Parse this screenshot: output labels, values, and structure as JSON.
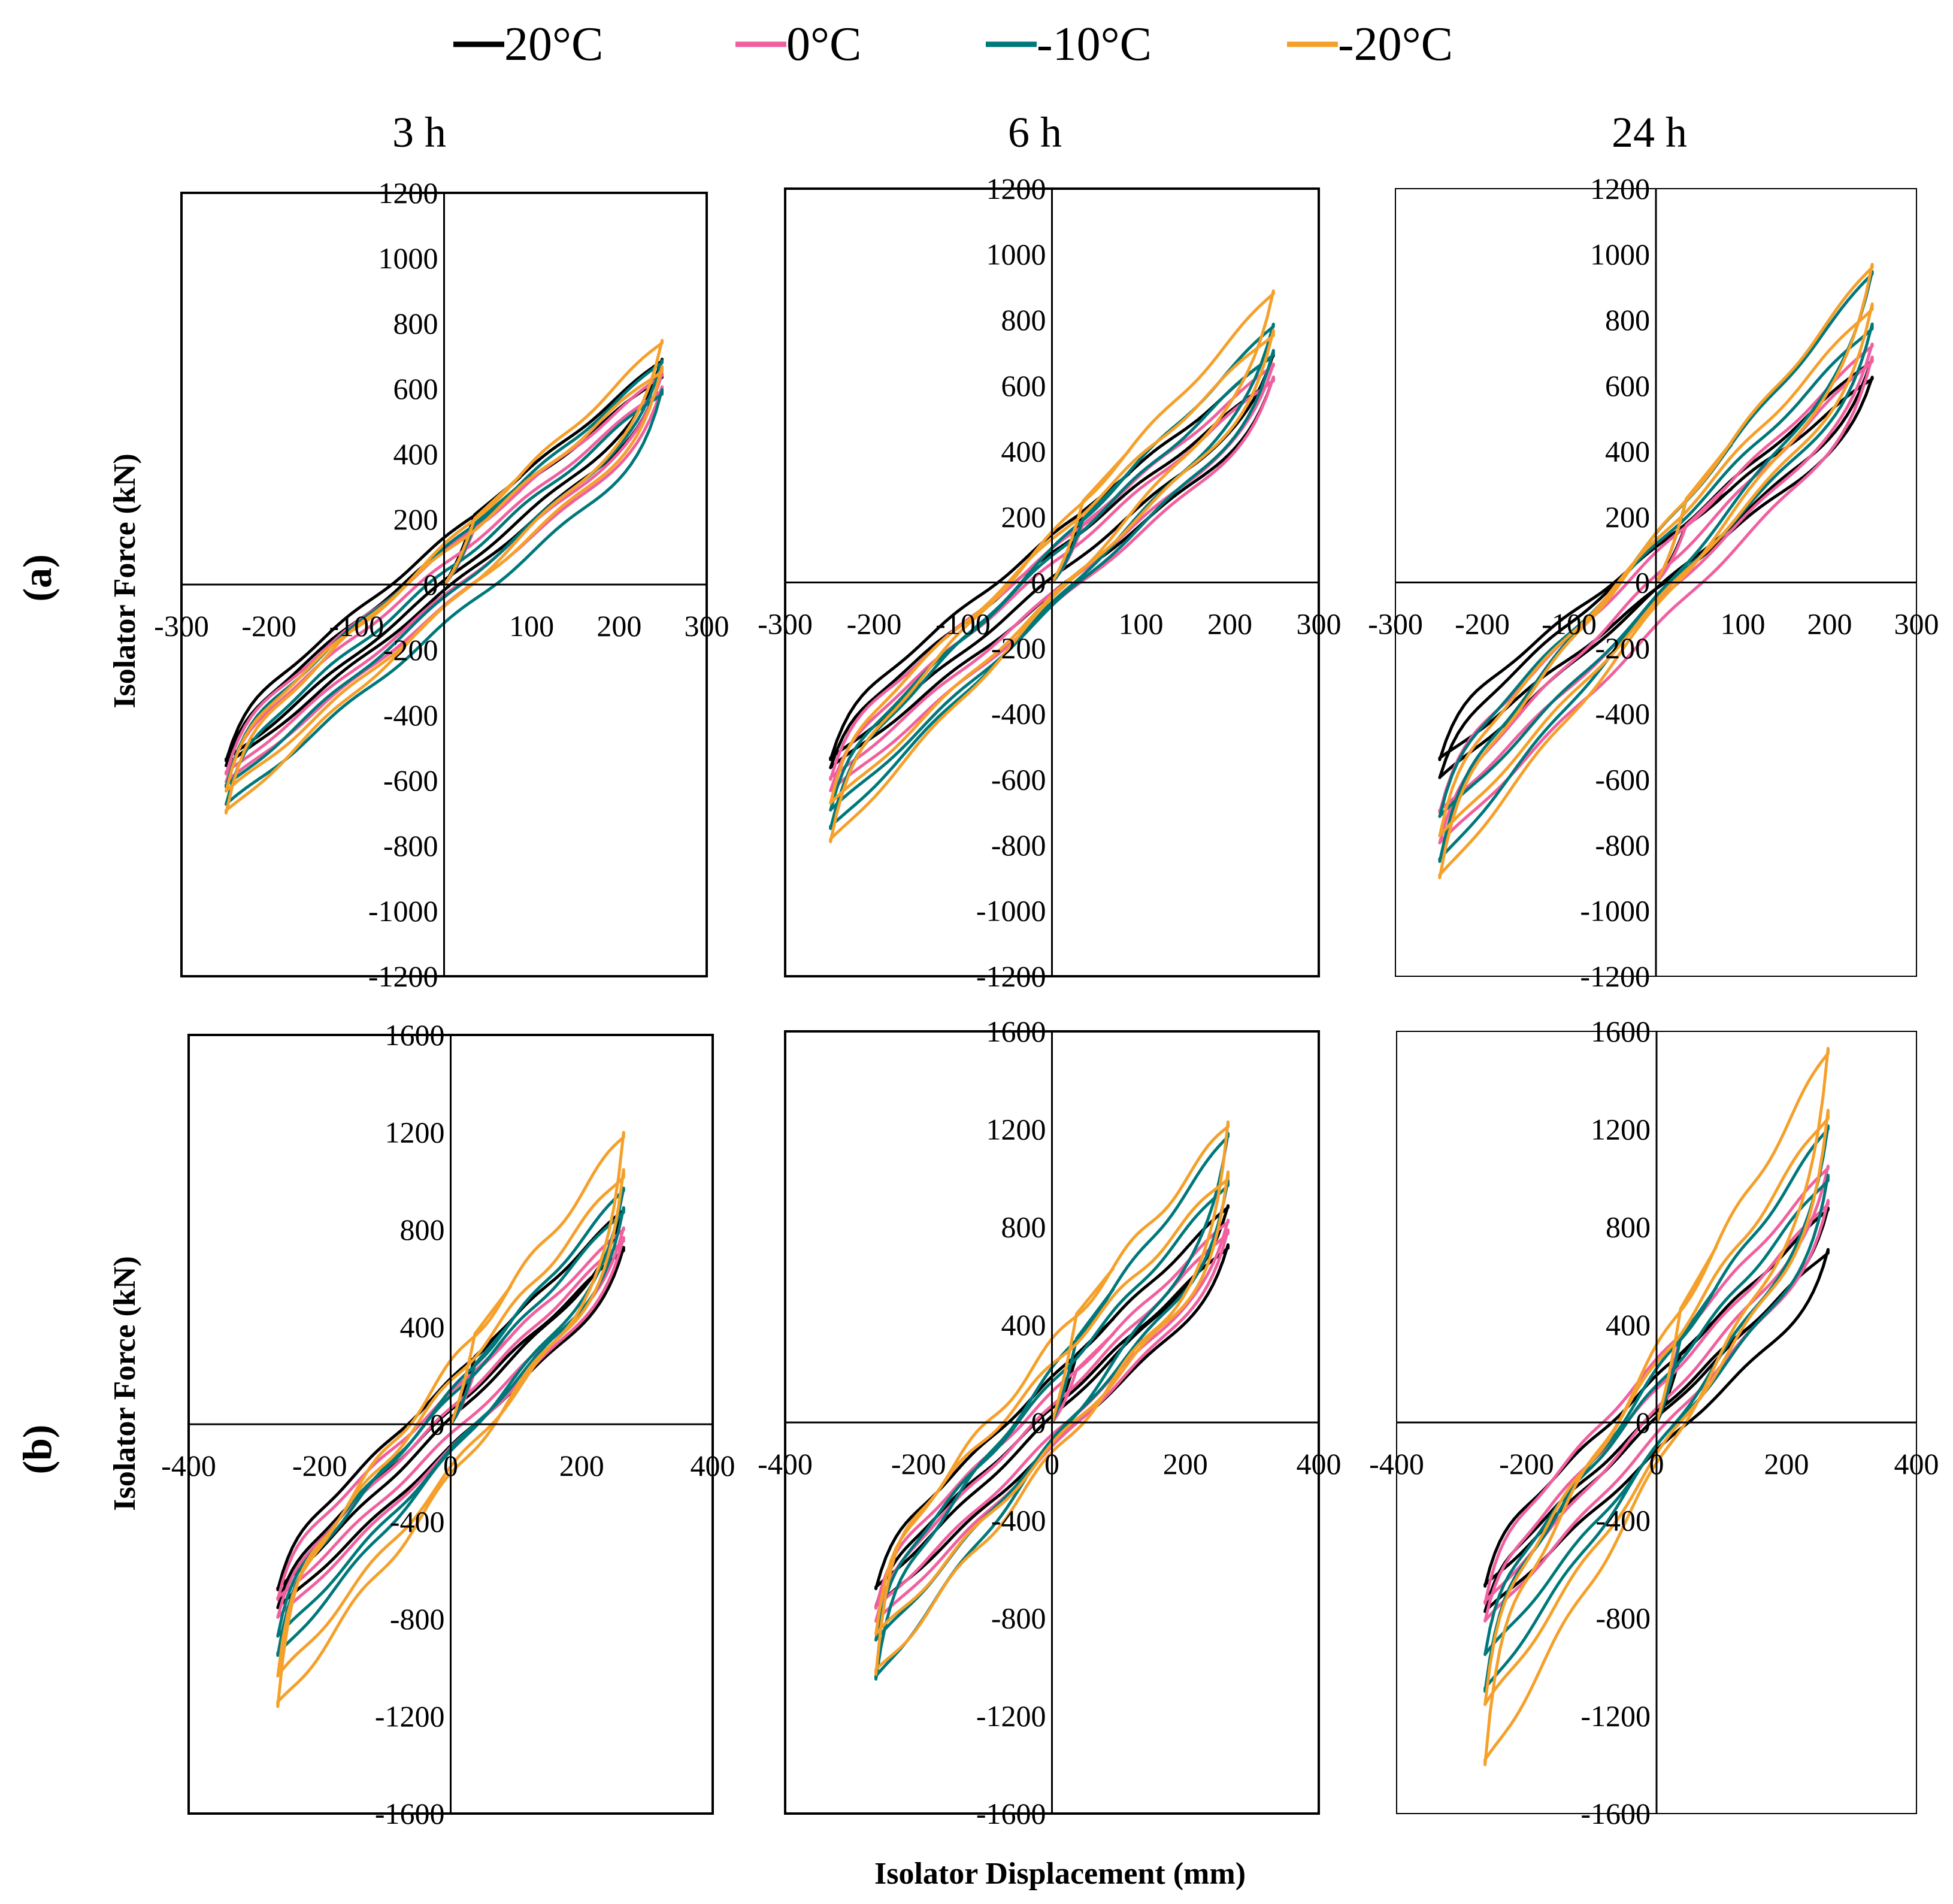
{
  "figure": {
    "x_axis_title": "Isolator Displacement (mm)",
    "y_axis_title": "Isolator Force (kN)",
    "row_labels": [
      "(a)",
      "(b)"
    ],
    "column_titles": [
      "3 h",
      "6 h",
      "24 h"
    ]
  },
  "legend": [
    {
      "label": "20°C",
      "color": "#000000"
    },
    {
      "label": "0°C",
      "color": "#f0609f"
    },
    {
      "label": "-10°C",
      "color": "#00787a"
    },
    {
      "label": "-20°C",
      "color": "#f5a02b"
    }
  ],
  "chart_data": [
    {
      "type": "line",
      "panel": "a-3h",
      "row": "(a)",
      "title": "3 h",
      "xlabel": "Isolator Displacement (mm)",
      "ylabel": "Isolator Force (kN)",
      "xlim": [
        -300,
        300
      ],
      "ylim": [
        -1200,
        1200
      ],
      "xticks": [
        -300,
        -200,
        -100,
        0,
        100,
        200,
        300
      ],
      "yticks": [
        -1200,
        -1000,
        -800,
        -600,
        -400,
        -200,
        0,
        200,
        400,
        600,
        800,
        1000,
        1200
      ],
      "series": [
        {
          "name": "20°C",
          "color": "#000000",
          "loops": [
            {
              "pmax": 685,
              "nmin": -540,
              "q": 130
            },
            {
              "pmax": 640,
              "nmin": -560,
              "q": 125
            }
          ]
        },
        {
          "name": "0°C",
          "color": "#f0609f",
          "loops": [
            {
              "pmax": 640,
              "nmin": -580,
              "q": 135
            },
            {
              "pmax": 600,
              "nmin": -610,
              "q": 130
            }
          ]
        },
        {
          "name": "-10°C",
          "color": "#00787a",
          "loops": [
            {
              "pmax": 680,
              "nmin": -620,
              "q": 150
            },
            {
              "pmax": 590,
              "nmin": -680,
              "q": 160
            }
          ]
        },
        {
          "name": "-20°C",
          "color": "#f5a02b",
          "loops": [
            {
              "pmax": 740,
              "nmin": -700,
              "q": 190
            },
            {
              "pmax": 660,
              "nmin": -640,
              "q": 170
            }
          ]
        }
      ]
    },
    {
      "type": "line",
      "panel": "a-6h",
      "row": "(a)",
      "title": "6 h",
      "xlabel": "Isolator Displacement (mm)",
      "ylabel": "Isolator Force (kN)",
      "xlim": [
        -300,
        300
      ],
      "ylim": [
        -1200,
        1200
      ],
      "xticks": [
        -300,
        -200,
        -100,
        0,
        100,
        200,
        300
      ],
      "yticks": [
        -1200,
        -1000,
        -800,
        -600,
        -400,
        -200,
        0,
        200,
        400,
        600,
        800,
        1000,
        1200
      ],
      "series": [
        {
          "name": "20°C",
          "color": "#000000",
          "loops": [
            {
              "pmax": 690,
              "nmin": -540,
              "q": 130
            },
            {
              "pmax": 620,
              "nmin": -570,
              "q": 125
            }
          ]
        },
        {
          "name": "0°C",
          "color": "#f0609f",
          "loops": [
            {
              "pmax": 660,
              "nmin": -600,
              "q": 135
            },
            {
              "pmax": 620,
              "nmin": -640,
              "q": 130
            }
          ]
        },
        {
          "name": "-10°C",
          "color": "#00787a",
          "loops": [
            {
              "pmax": 780,
              "nmin": -750,
              "q": 165
            },
            {
              "pmax": 700,
              "nmin": -700,
              "q": 155
            }
          ]
        },
        {
          "name": "-20°C",
          "color": "#f5a02b",
          "loops": [
            {
              "pmax": 880,
              "nmin": -790,
              "q": 200
            },
            {
              "pmax": 760,
              "nmin": -680,
              "q": 175
            }
          ]
        }
      ]
    },
    {
      "type": "line",
      "panel": "a-24h",
      "row": "(a)",
      "title": "24 h",
      "xlabel": "Isolator Displacement (mm)",
      "ylabel": "Isolator Force (kN)",
      "xlim": [
        -300,
        300
      ],
      "ylim": [
        -1200,
        1200
      ],
      "xticks": [
        -300,
        -200,
        -100,
        0,
        100,
        200,
        300
      ],
      "yticks": [
        -1200,
        -1000,
        -800,
        -600,
        -400,
        -200,
        0,
        200,
        400,
        600,
        800,
        1000,
        1200
      ],
      "series": [
        {
          "name": "20°C",
          "color": "#000000",
          "loops": [
            {
              "pmax": 620,
              "nmin": -540,
              "q": 130
            },
            {
              "pmax": 680,
              "nmin": -600,
              "q": 130
            }
          ]
        },
        {
          "name": "0°C",
          "color": "#f0609f",
          "loops": [
            {
              "pmax": 720,
              "nmin": -700,
              "q": 150
            },
            {
              "pmax": 680,
              "nmin": -800,
              "q": 155
            }
          ]
        },
        {
          "name": "-10°C",
          "color": "#00787a",
          "loops": [
            {
              "pmax": 940,
              "nmin": -850,
              "q": 190
            },
            {
              "pmax": 780,
              "nmin": -720,
              "q": 165
            }
          ]
        },
        {
          "name": "-20°C",
          "color": "#f5a02b",
          "loops": [
            {
              "pmax": 960,
              "nmin": -900,
              "q": 220
            },
            {
              "pmax": 840,
              "nmin": -780,
              "q": 190
            }
          ]
        }
      ]
    },
    {
      "type": "line",
      "panel": "b-3h",
      "row": "(b)",
      "title": "3 h",
      "xlabel": "Isolator Displacement (mm)",
      "ylabel": "Isolator Force (kN)",
      "xlim": [
        -400,
        400
      ],
      "ylim": [
        -1600,
        1600
      ],
      "xticks": [
        -400,
        -200,
        0,
        200,
        400
      ],
      "yticks": [
        -1600,
        -1200,
        -800,
        -400,
        0,
        400,
        800,
        1200,
        1600
      ],
      "series": [
        {
          "name": "20°C",
          "color": "#000000",
          "loops": [
            {
              "pmax": 880,
              "nmin": -680,
              "q": 160
            },
            {
              "pmax": 720,
              "nmin": -760,
              "q": 150
            }
          ]
        },
        {
          "name": "0°C",
          "color": "#f0609f",
          "loops": [
            {
              "pmax": 800,
              "nmin": -720,
              "q": 170
            },
            {
              "pmax": 760,
              "nmin": -800,
              "q": 165
            }
          ]
        },
        {
          "name": "-10°C",
          "color": "#00787a",
          "loops": [
            {
              "pmax": 960,
              "nmin": -950,
              "q": 250
            },
            {
              "pmax": 880,
              "nmin": -880,
              "q": 220
            }
          ]
        },
        {
          "name": "-20°C",
          "color": "#f5a02b",
          "loops": [
            {
              "pmax": 1180,
              "nmin": -1160,
              "q": 460
            },
            {
              "pmax": 1030,
              "nmin": -1050,
              "q": 360
            }
          ]
        }
      ]
    },
    {
      "type": "line",
      "panel": "b-6h",
      "row": "(b)",
      "title": "6 h",
      "xlabel": "Isolator Displacement (mm)",
      "ylabel": "Isolator Force (kN)",
      "xlim": [
        -400,
        400
      ],
      "ylim": [
        -1600,
        1600
      ],
      "xticks": [
        -400,
        -200,
        0,
        200,
        400
      ],
      "yticks": [
        -1600,
        -1200,
        -800,
        -400,
        0,
        400,
        800,
        1200,
        1600
      ],
      "series": [
        {
          "name": "20°C",
          "color": "#000000",
          "loops": [
            {
              "pmax": 880,
              "nmin": -680,
              "q": 160
            },
            {
              "pmax": 720,
              "nmin": -760,
              "q": 150
            }
          ]
        },
        {
          "name": "0°C",
          "color": "#f0609f",
          "loops": [
            {
              "pmax": 820,
              "nmin": -760,
              "q": 175
            },
            {
              "pmax": 780,
              "nmin": -820,
              "q": 170
            }
          ]
        },
        {
          "name": "-10°C",
          "color": "#00787a",
          "loops": [
            {
              "pmax": 1170,
              "nmin": -1050,
              "q": 300
            },
            {
              "pmax": 980,
              "nmin": -900,
              "q": 240
            }
          ]
        },
        {
          "name": "-20°C",
          "color": "#f5a02b",
          "loops": [
            {
              "pmax": 1210,
              "nmin": -1030,
              "q": 460
            },
            {
              "pmax": 1010,
              "nmin": -880,
              "q": 330
            }
          ]
        }
      ]
    },
    {
      "type": "line",
      "panel": "b-24h",
      "row": "(b)",
      "title": "24 h",
      "xlabel": "Isolator Displacement (mm)",
      "ylabel": "Isolator Force (kN)",
      "xlim": [
        -400,
        400
      ],
      "ylim": [
        -1600,
        1600
      ],
      "xticks": [
        -400,
        -200,
        0,
        200,
        400
      ],
      "yticks": [
        -1600,
        -1200,
        -800,
        -400,
        0,
        400,
        800,
        1200,
        1600
      ],
      "series": [
        {
          "name": "20°C",
          "color": "#000000",
          "loops": [
            {
              "pmax": 870,
              "nmin": -670,
              "q": 170
            },
            {
              "pmax": 700,
              "nmin": -780,
              "q": 160
            }
          ]
        },
        {
          "name": "0°C",
          "color": "#f0609f",
          "loops": [
            {
              "pmax": 1040,
              "nmin": -740,
              "q": 200
            },
            {
              "pmax": 900,
              "nmin": -820,
              "q": 185
            }
          ]
        },
        {
          "name": "-10°C",
          "color": "#00787a",
          "loops": [
            {
              "pmax": 1200,
              "nmin": -1100,
              "q": 310
            },
            {
              "pmax": 1000,
              "nmin": -960,
              "q": 250
            }
          ]
        },
        {
          "name": "-20°C",
          "color": "#f5a02b",
          "loops": [
            {
              "pmax": 1510,
              "nmin": -1400,
              "q": 480
            },
            {
              "pmax": 1260,
              "nmin": -1170,
              "q": 380
            }
          ]
        }
      ]
    }
  ]
}
